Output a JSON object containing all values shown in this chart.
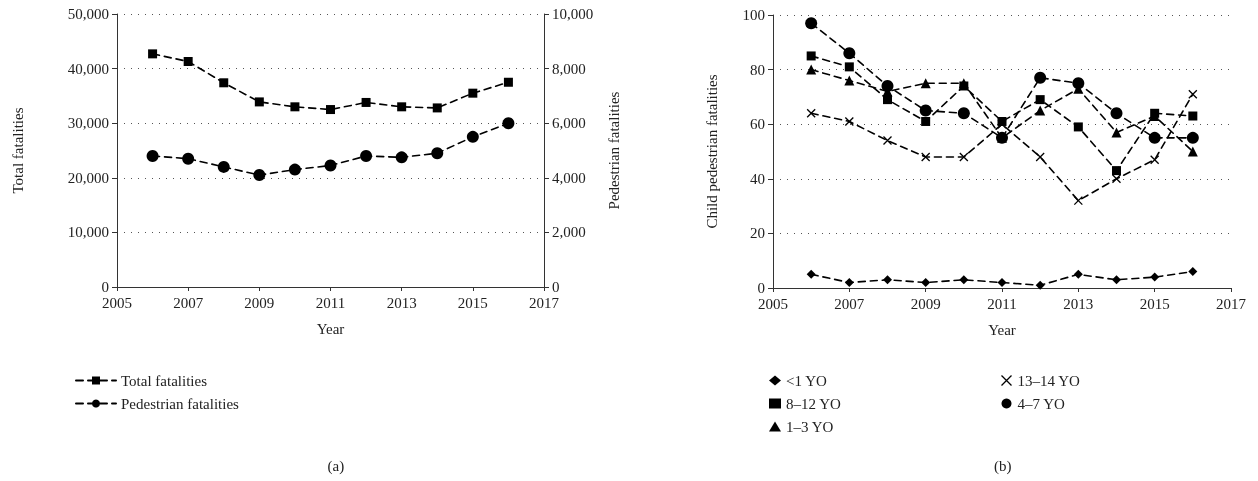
{
  "chart_data": [
    {
      "type": "line",
      "xlabel": "Year",
      "ylabel": "Total fatalities",
      "y2label": "Pedestrian fatalities",
      "x": [
        2006,
        2007,
        2008,
        2009,
        2010,
        2011,
        2012,
        2013,
        2014,
        2015,
        2016
      ],
      "series": [
        {
          "name": "Total fatalities",
          "color": "#000000",
          "marker": "square",
          "values": [
            42700,
            41300,
            37400,
            33900,
            33000,
            32500,
            33800,
            33000,
            32800,
            35500,
            37500
          ]
        },
        {
          "name": "Pedestrian fatalities",
          "color": "#000000",
          "marker": "circle",
          "axis": "y2",
          "values": [
            4800,
            4700,
            4400,
            4100,
            4300,
            4450,
            4800,
            4750,
            4900,
            5500,
            6000
          ]
        }
      ],
      "xlim": [
        2005,
        2017
      ],
      "xticks": [
        2005,
        2007,
        2009,
        2011,
        2013,
        2015,
        2017
      ],
      "ylim": [
        0,
        50000
      ],
      "yticks": [
        0,
        {
          "value": 10000,
          "label": "10,000"
        },
        {
          "value": 20000,
          "label": "20,000"
        },
        {
          "value": 30000,
          "label": "30,000"
        },
        {
          "value": 40000,
          "label": "40,000"
        },
        {
          "value": 50000,
          "label": "50,000"
        }
      ],
      "y2lim": [
        0,
        10000
      ],
      "y2ticks": [
        0,
        {
          "value": 2000,
          "label": "2,000"
        },
        {
          "value": 4000,
          "label": "4,000"
        },
        {
          "value": 6000,
          "label": "6,000"
        },
        {
          "value": 8000,
          "label": "8,000"
        },
        {
          "value": 10000,
          "label": "10,000"
        }
      ],
      "grid": "y",
      "legend": "bottom",
      "line_style": "dashed",
      "annotations": [
        "(a)"
      ]
    },
    {
      "type": "line",
      "xlabel": "Year",
      "ylabel": "Child pedestrian fatalities",
      "x": [
        2006,
        2007,
        2008,
        2009,
        2010,
        2011,
        2012,
        2013,
        2014,
        2015,
        2016
      ],
      "series": [
        {
          "name": "<1 YO",
          "color": "#000000",
          "marker": "diamond",
          "values": [
            5,
            2,
            3,
            2,
            3,
            2,
            1,
            5,
            3,
            4,
            6
          ]
        },
        {
          "name": "8–12 YO",
          "color": "#000000",
          "marker": "square",
          "values": [
            85,
            81,
            69,
            61,
            74,
            61,
            69,
            59,
            43,
            64,
            63
          ]
        },
        {
          "name": "1–3 YO",
          "color": "#000000",
          "marker": "triangle",
          "values": [
            80,
            76,
            72,
            75,
            75,
            55,
            65,
            73,
            57,
            63,
            50
          ]
        },
        {
          "name": "13–14 YO",
          "color": "#000000",
          "marker": "cross",
          "values": [
            64,
            61,
            54,
            48,
            48,
            60,
            48,
            32,
            40,
            47,
            71
          ]
        },
        {
          "name": "4–7 YO",
          "color": "#000000",
          "marker": "circle",
          "values": [
            97,
            86,
            74,
            65,
            64,
            55,
            77,
            75,
            64,
            55,
            55
          ]
        }
      ],
      "xlim": [
        2005,
        2017
      ],
      "xticks": [
        2005,
        2007,
        2009,
        2011,
        2013,
        2015,
        2017
      ],
      "ylim": [
        0,
        100
      ],
      "yticks": [
        0,
        20,
        40,
        60,
        80,
        100
      ],
      "grid": "y",
      "legend": "bottom",
      "line_style": "dashed",
      "annotations": [
        "(b)"
      ]
    }
  ]
}
